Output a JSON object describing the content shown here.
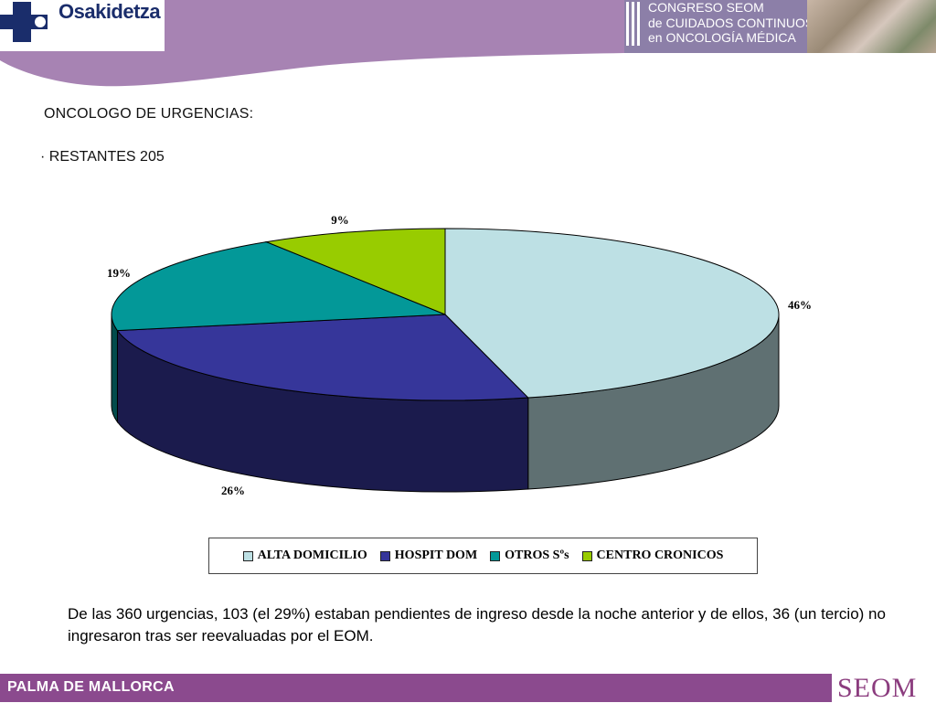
{
  "header": {
    "org_logo_text": "Osakidetza",
    "congress_lines": [
      "CONGRESO SEOM",
      "de CUIDADOS CONTINUOS",
      "en ONCOLOGÍA MÉDICA"
    ],
    "band_color": "#a783b3"
  },
  "slide": {
    "title": "ONCOLOGO DE URGENCIAS:",
    "subtitle": "· RESTANTES 205",
    "note": "De las 360 urgencias, 103 (el 29%) estaban pendientes de ingreso desde la noche anterior y de ellos, 36 (un tercio) no ingresaron tras ser reevaluadas por el EOM."
  },
  "chart_data": {
    "type": "pie",
    "style": "3d",
    "categories": [
      "ALTA DOMICILIO",
      "HOSPIT DOM",
      "OTROS Sºs",
      "CENTRO CRONICOS"
    ],
    "values": [
      46,
      26,
      19,
      9
    ],
    "labels": [
      "46%",
      "26%",
      "19%",
      "9%"
    ],
    "colors": [
      "#bde0e4",
      "#36369a",
      "#039898",
      "#98cc00"
    ],
    "legend_position": "bottom"
  },
  "footer": {
    "location": "PALMA DE MALLORCA",
    "logo_text": "SEOM"
  }
}
